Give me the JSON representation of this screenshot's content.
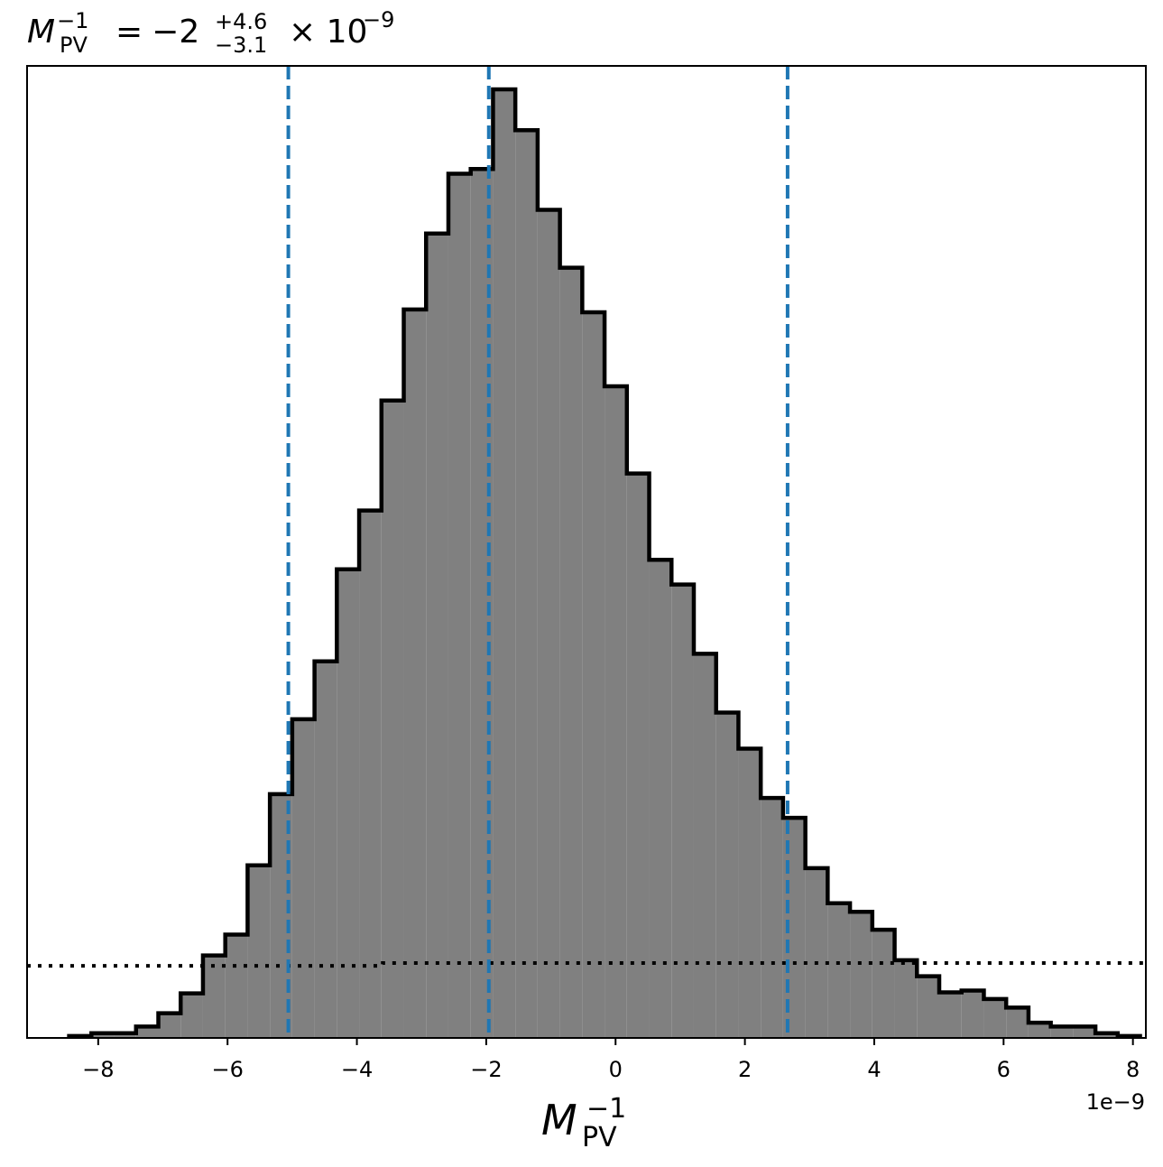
{
  "chart_data": {
    "type": "bar",
    "title": {
      "lhs_base": "M",
      "lhs_sub": "PV",
      "lhs_sup": "−1",
      "equals": "=",
      "value": "−2",
      "upper": "+4.6",
      "lower": "−3.1",
      "times": "× 10",
      "exponent": "−9"
    },
    "xlabel": {
      "base": "M",
      "sub": "PV",
      "sup": "−1"
    },
    "ylabel": "",
    "offset_text": "1e−9",
    "x_unit_scale": 1e-09,
    "xlim": [
      -9.1,
      8.2
    ],
    "ylim": [
      0,
      1.0
    ],
    "xticks": [
      -8,
      -6,
      -4,
      -2,
      0,
      2,
      4,
      6,
      8
    ],
    "xtick_labels": [
      "−8",
      "−6",
      "−4",
      "−2",
      "0",
      "2",
      "4",
      "6",
      "8"
    ],
    "y_axis_visible": false,
    "grid": false,
    "fill_color": "#808080",
    "edge_color": "#000000",
    "bins": {
      "start": -8.45,
      "width": 0.345,
      "values": [
        0.002,
        0.005,
        0.005,
        0.012,
        0.026,
        0.047,
        0.087,
        0.109,
        0.182,
        0.257,
        0.336,
        0.397,
        0.494,
        0.556,
        0.672,
        0.768,
        0.848,
        0.911,
        0.916,
        1.0,
        0.957,
        0.873,
        0.812,
        0.765,
        0.687,
        0.595,
        0.504,
        0.478,
        0.405,
        0.343,
        0.305,
        0.253,
        0.232,
        0.179,
        0.142,
        0.133,
        0.114,
        0.082,
        0.065,
        0.048,
        0.05,
        0.041,
        0.032,
        0.016,
        0.012,
        0.012,
        0.005,
        0.002
      ]
    },
    "vertical_lines": {
      "color": "#1f77b4",
      "style": "dashed",
      "x": [
        -5.06,
        -1.96,
        2.66
      ]
    },
    "dotted_line": {
      "color": "#000000",
      "style": "dotted",
      "x": [
        -9.1,
        -3.6,
        -3.6,
        8.2
      ],
      "y": [
        0.076,
        0.076,
        0.079,
        0.079
      ]
    }
  }
}
